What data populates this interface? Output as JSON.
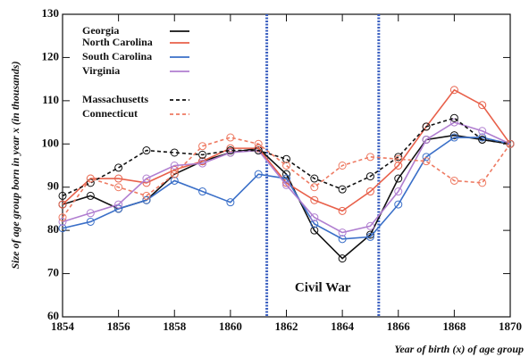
{
  "chart_data": {
    "type": "line",
    "y_label": "Size of age group born in year x (in thousands)",
    "x_label": "Year of birth (x) of age group",
    "annotation": "Civil War",
    "vlines": [
      1861.3,
      1865.3
    ],
    "vline_color": "#3a5fc0",
    "x": [
      1854,
      1855,
      1856,
      1857,
      1858,
      1859,
      1860,
      1861,
      1862,
      1863,
      1864,
      1865,
      1866,
      1867,
      1868,
      1869,
      1870
    ],
    "xlim": [
      1854,
      1870
    ],
    "xticks": [
      1854,
      1856,
      1858,
      1860,
      1862,
      1864,
      1866,
      1868,
      1870
    ],
    "ylim": [
      60,
      130
    ],
    "yticks": [
      60,
      70,
      80,
      90,
      100,
      110,
      120,
      130
    ],
    "series": [
      {
        "name": "Georgia",
        "color": "#111111",
        "dash": false,
        "values": [
          86,
          88,
          85,
          87,
          93,
          96,
          98,
          99,
          93,
          80,
          73.5,
          79,
          92,
          101,
          102,
          101,
          100
        ]
      },
      {
        "name": "North Carolina",
        "color": "#e8604a",
        "dash": false,
        "values": [
          86,
          92,
          92,
          91,
          94,
          96,
          99,
          99,
          91,
          87,
          84.5,
          89,
          95,
          104,
          112.5,
          109,
          100
        ]
      },
      {
        "name": "South Carolina",
        "color": "#3a6fc8",
        "dash": false,
        "values": [
          80.5,
          82,
          85,
          87,
          91.5,
          89,
          86.5,
          93,
          92,
          81.5,
          78,
          78.5,
          86,
          97,
          101.5,
          101.5,
          100
        ]
      },
      {
        "name": "Virginia",
        "color": "#b07ed0",
        "dash": false,
        "values": [
          82,
          84,
          86,
          92,
          95,
          95.5,
          98,
          98.5,
          90.5,
          83,
          79.5,
          81,
          89,
          101,
          105,
          103,
          100
        ]
      },
      {
        "name": "Massachusetts",
        "color": "#111111",
        "dash": true,
        "values": [
          88,
          91,
          94.5,
          98.5,
          98,
          97.5,
          98.5,
          98.5,
          96.5,
          92,
          89.5,
          92.5,
          97,
          104,
          106,
          101,
          100
        ]
      },
      {
        "name": "Connecticut",
        "color": "#ee7a62",
        "dash": true,
        "values": [
          83,
          92,
          90,
          88,
          93,
          99.5,
          101.5,
          100,
          95,
          90,
          95,
          97,
          96.5,
          96,
          91.5,
          91,
          100
        ]
      }
    ]
  }
}
